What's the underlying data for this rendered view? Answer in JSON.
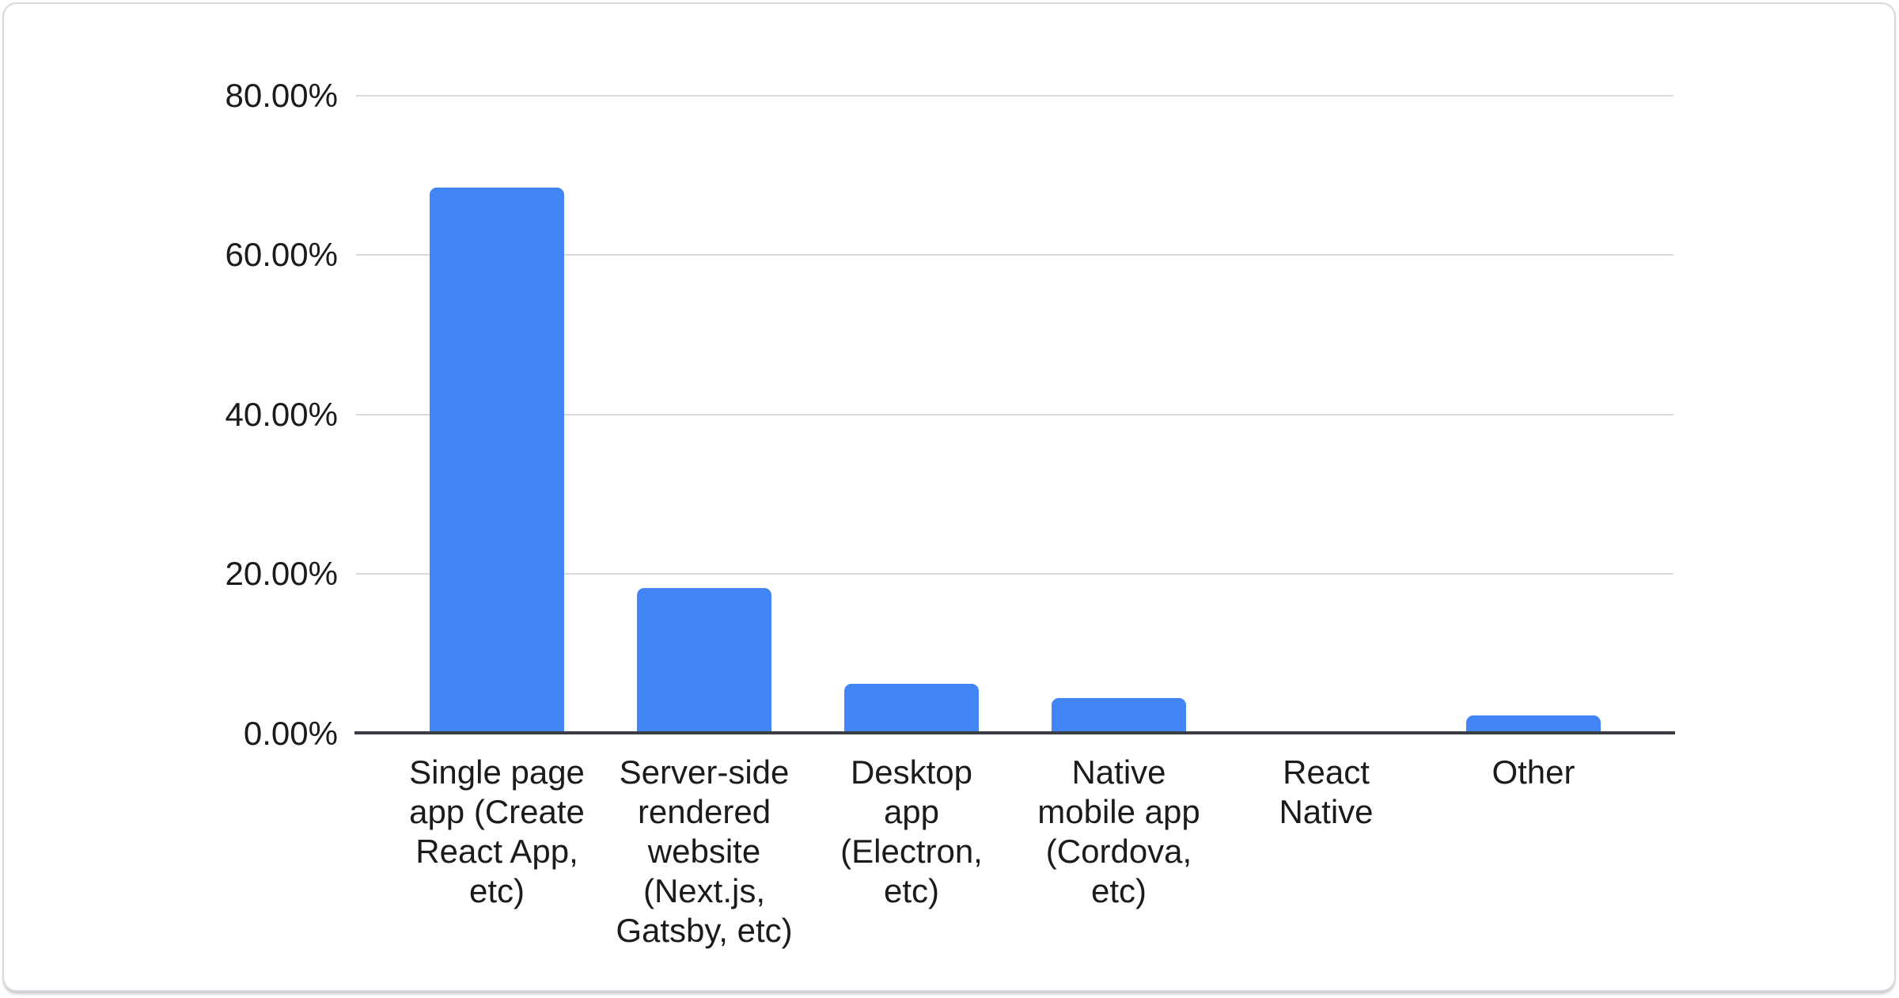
{
  "chart_data": {
    "type": "bar",
    "title": "",
    "xlabel": "",
    "ylabel": "",
    "categories": [
      "Single page app (Create React App, etc)",
      "Server-side rendered website (Next.js, Gatsby, etc)",
      "Desktop app (Electron, etc)",
      "Native mobile app (Cordova, etc)",
      "React Native",
      "Other"
    ],
    "categories_display": [
      "Single page\napp (Create\nReact App,\netc)",
      "Server-side\nrendered\nwebsite\n(Next.js,\nGatsby, etc)",
      "Desktop\napp\n(Electron,\netc)",
      "Native\nmobile app\n(Cordova,\netc)",
      "React\nNative",
      "Other"
    ],
    "values": [
      68.5,
      18.3,
      6.3,
      4.5,
      0,
      2.3
    ],
    "unit": "%",
    "y_ticks": [
      "80.00%",
      "60.00%",
      "40.00%",
      "20.00%",
      "0.00%"
    ],
    "ylim": [
      0,
      80
    ],
    "grid": true,
    "legend": "none",
    "bar_color": "#4285f4",
    "gridline_color": "#d9d9d9",
    "axis_color": "#3a3d41"
  }
}
